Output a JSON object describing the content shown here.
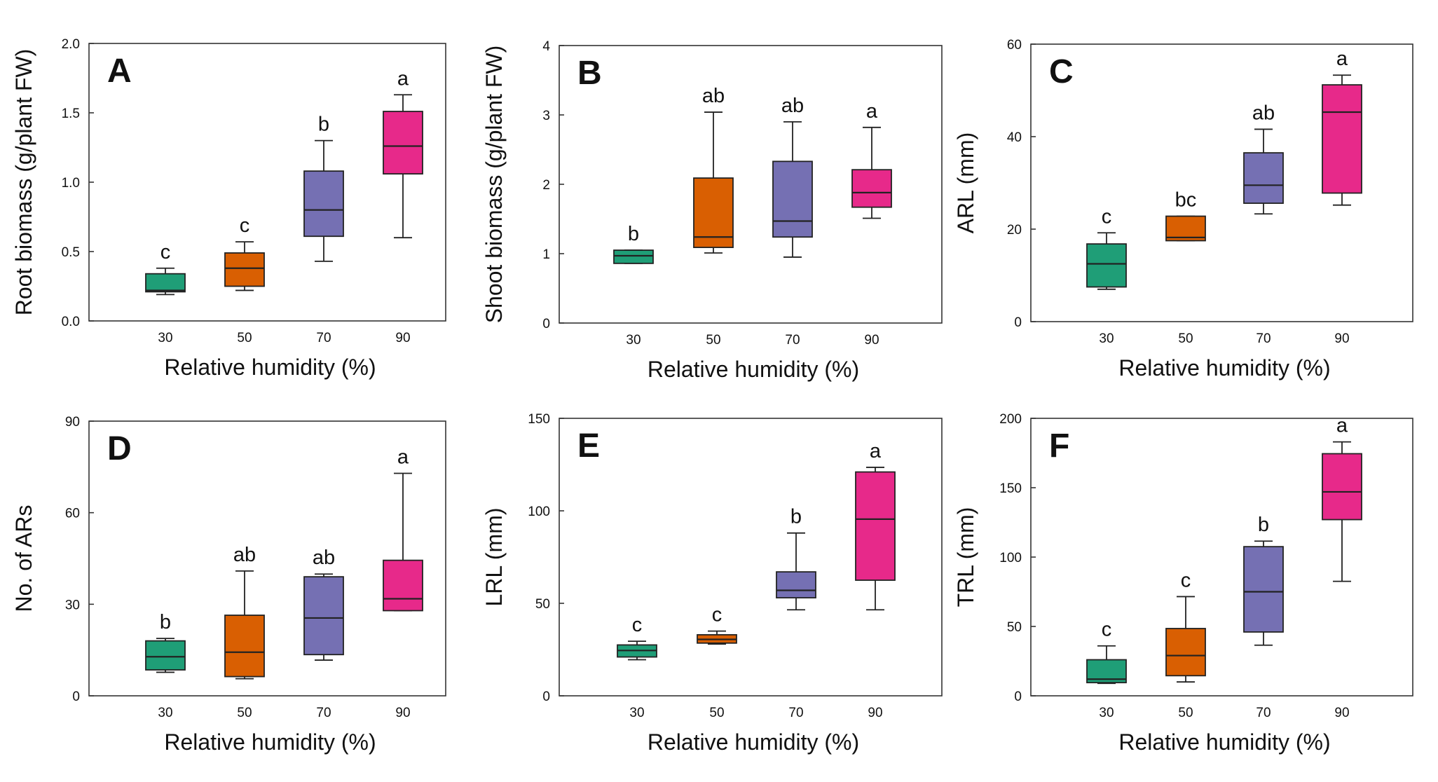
{
  "chart_data": [
    {
      "type": "box",
      "panel_label": "A",
      "xlabel": "Relative humidity (%)",
      "ylabel": "Root biomass (g/plant FW)",
      "categories": [
        "30",
        "50",
        "70",
        "90"
      ],
      "ylim": [
        0,
        2.0
      ],
      "yticks": [
        "0.0",
        "0.5",
        "1.0",
        "1.5",
        "2.0"
      ],
      "boxes": [
        {
          "min": 0.19,
          "q1": 0.21,
          "median": 0.22,
          "q3": 0.34,
          "max": 0.38,
          "group": "c"
        },
        {
          "min": 0.22,
          "q1": 0.25,
          "median": 0.38,
          "q3": 0.49,
          "max": 0.57,
          "group": "c"
        },
        {
          "min": 0.43,
          "q1": 0.61,
          "median": 0.8,
          "q3": 1.08,
          "max": 1.3,
          "group": "b"
        },
        {
          "min": 0.6,
          "q1": 1.06,
          "median": 1.26,
          "q3": 1.51,
          "max": 1.63,
          "group": "a"
        }
      ]
    },
    {
      "type": "box",
      "panel_label": "B",
      "xlabel": "Relative humidity (%)",
      "ylabel": "Shoot biomass (g/plant FW)",
      "categories": [
        "30",
        "50",
        "70",
        "90"
      ],
      "ylim": [
        0,
        4
      ],
      "yticks": [
        "0",
        "1",
        "2",
        "3",
        "4"
      ],
      "boxes": [
        {
          "min": 0.86,
          "q1": 0.86,
          "median": 0.97,
          "q3": 1.05,
          "max": 1.05,
          "group": "b"
        },
        {
          "min": 1.01,
          "q1": 1.09,
          "median": 1.24,
          "q3": 2.09,
          "max": 3.04,
          "group": "ab"
        },
        {
          "min": 0.95,
          "q1": 1.24,
          "median": 1.47,
          "q3": 2.33,
          "max": 2.9,
          "group": "ab"
        },
        {
          "min": 1.51,
          "q1": 1.67,
          "median": 1.88,
          "q3": 2.21,
          "max": 2.82,
          "group": "a"
        }
      ]
    },
    {
      "type": "box",
      "panel_label": "C",
      "xlabel": "Relative humidity (%)",
      "ylabel": "ARL (mm)",
      "categories": [
        "30",
        "50",
        "70",
        "90"
      ],
      "ylim": [
        0,
        60
      ],
      "yticks": [
        "0",
        "20",
        "40",
        "60"
      ],
      "boxes": [
        {
          "min": 7.0,
          "q1": 7.5,
          "median": 12.5,
          "q3": 16.8,
          "max": 19.2,
          "group": "c"
        },
        {
          "min": 17.5,
          "q1": 17.5,
          "median": 18.2,
          "q3": 22.8,
          "max": 22.8,
          "group": "bc"
        },
        {
          "min": 23.3,
          "q1": 25.6,
          "median": 29.5,
          "q3": 36.5,
          "max": 41.6,
          "group": "ab"
        },
        {
          "min": 25.2,
          "q1": 27.8,
          "median": 45.3,
          "q3": 51.2,
          "max": 53.3,
          "group": "a"
        }
      ]
    },
    {
      "type": "box",
      "panel_label": "D",
      "xlabel": "Relative humidity (%)",
      "ylabel": "No. of ARs",
      "categories": [
        "30",
        "50",
        "70",
        "90"
      ],
      "ylim": [
        0,
        90
      ],
      "yticks": [
        "0",
        "30",
        "60",
        "90"
      ],
      "boxes": [
        {
          "min": 7.7,
          "q1": 8.5,
          "median": 12.8,
          "q3": 18.0,
          "max": 18.8,
          "group": "b"
        },
        {
          "min": 5.6,
          "q1": 6.3,
          "median": 14.3,
          "q3": 26.4,
          "max": 40.9,
          "group": "ab"
        },
        {
          "min": 11.7,
          "q1": 13.5,
          "median": 25.5,
          "q3": 39.0,
          "max": 39.9,
          "group": "ab"
        },
        {
          "min": 27.9,
          "q1": 27.9,
          "median": 31.8,
          "q3": 44.4,
          "max": 72.9,
          "group": "a"
        }
      ]
    },
    {
      "type": "box",
      "panel_label": "E",
      "xlabel": "Relative humidity (%)",
      "ylabel": "LRL (mm)",
      "categories": [
        "30",
        "50",
        "70",
        "90"
      ],
      "ylim": [
        0,
        150
      ],
      "yticks": [
        "0",
        "50",
        "100",
        "150"
      ],
      "boxes": [
        {
          "min": 19.5,
          "q1": 21.0,
          "median": 24.5,
          "q3": 27.5,
          "max": 29.5,
          "group": "c"
        },
        {
          "min": 28.0,
          "q1": 28.5,
          "median": 30.5,
          "q3": 33.0,
          "max": 35.0,
          "group": "c"
        },
        {
          "min": 46.5,
          "q1": 53.0,
          "median": 57.0,
          "q3": 67.0,
          "max": 88.0,
          "group": "b"
        },
        {
          "min": 46.5,
          "q1": 62.5,
          "median": 95.5,
          "q3": 121.0,
          "max": 123.5,
          "group": "a"
        }
      ]
    },
    {
      "type": "box",
      "panel_label": "F",
      "xlabel": "Relative humidity (%)",
      "ylabel": "TRL (mm)",
      "categories": [
        "30",
        "50",
        "70",
        "90"
      ],
      "ylim": [
        0,
        200
      ],
      "yticks": [
        "0",
        "50",
        "100",
        "150",
        "200"
      ],
      "boxes": [
        {
          "min": 9.0,
          "q1": 9.5,
          "median": 12.0,
          "q3": 26.0,
          "max": 36.0,
          "group": "c"
        },
        {
          "min": 10.0,
          "q1": 14.5,
          "median": 29.0,
          "q3": 48.5,
          "max": 71.5,
          "group": "c"
        },
        {
          "min": 36.5,
          "q1": 46.0,
          "median": 75.0,
          "q3": 107.5,
          "max": 111.5,
          "group": "b"
        },
        {
          "min": 82.5,
          "q1": 127.0,
          "median": 147.0,
          "q3": 174.5,
          "max": 183.0,
          "group": "a"
        }
      ]
    }
  ],
  "colors": [
    "#1f9e77",
    "#d95f02",
    "#7570b3",
    "#e7298a"
  ]
}
